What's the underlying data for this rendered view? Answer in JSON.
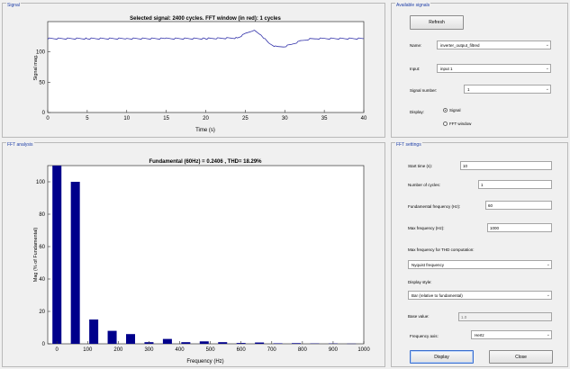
{
  "signal_panel": {
    "title": "Signal",
    "plot_title": "Selected signal: 2400 cycles. FFT window (in red): 1 cycles",
    "xlabel": "Time (s)",
    "ylabel": "Signal mag."
  },
  "fft_panel": {
    "title": "FFT analysis",
    "plot_title": "Fundamental (60Hz) = 0.2406 , THD= 18.29%",
    "xlabel": "Frequency (Hz)",
    "ylabel": "Mag (% of Fundamental)"
  },
  "available_signals": {
    "title": "Available signals",
    "refresh_label": "Refresh",
    "name_label": "Name:",
    "name_value": "inverter_output_filtred",
    "input_label": "Input:",
    "input_value": "input 1",
    "signal_number_label": "Signal number:",
    "signal_number_value": "1",
    "display_label": "Display:",
    "radio_signal": "Signal",
    "radio_fft_window": "FFT window",
    "selected_display": "Signal"
  },
  "fft_settings": {
    "title": "FFT settings",
    "start_time_label": "Start time (s):",
    "start_time_value": "10",
    "num_cycles_label": "Number of cycles:",
    "num_cycles_value": "1",
    "fund_freq_label": "Fundamental frequency (Hz):",
    "fund_freq_value": "60",
    "max_freq_label": "Max frequency (Hz):",
    "max_freq_value": "1000",
    "thd_label": "Max frequency for THD computation:",
    "thd_value": "Nyquist frequency",
    "display_style_label": "Display style:",
    "display_style_value": "Bar (relative to fundamental)",
    "base_value_label": "Base value:",
    "base_value_value": "1.0",
    "freq_axis_label": "Frequency axis:",
    "freq_axis_value": "Hertz",
    "display_button": "Display",
    "close_button": "Close"
  },
  "colors": {
    "signal_line": "#3333aa",
    "bar_fill": "#00008b",
    "panel_title": "#1f3fa8"
  },
  "chart_data": [
    {
      "type": "line",
      "title": "Selected signal: 2400 cycles. FFT window (in red): 1 cycles",
      "xlabel": "Time (s)",
      "ylabel": "Signal mag.",
      "xlim": [
        0,
        40
      ],
      "ylim": [
        0,
        150
      ],
      "xticks": [
        0,
        5,
        10,
        15,
        20,
        25,
        30,
        35,
        40
      ],
      "yticks": [
        0,
        50,
        100
      ],
      "x": [
        0,
        5,
        10,
        15,
        20,
        24,
        25,
        26,
        27,
        28,
        29,
        30,
        31,
        32,
        33,
        34,
        35,
        40
      ],
      "y": [
        122,
        122,
        122,
        122,
        122,
        123,
        130,
        136,
        128,
        114,
        108,
        109,
        113,
        118,
        121,
        122,
        122,
        122
      ]
    },
    {
      "type": "bar",
      "title": "Fundamental (60Hz) = 0.2406 , THD= 18.29%",
      "xlabel": "Frequency (Hz)",
      "ylabel": "Mag (% of Fundamental)",
      "xlim": [
        -30,
        1000
      ],
      "ylim": [
        0,
        110
      ],
      "xticks": [
        0,
        100,
        200,
        300,
        400,
        500,
        600,
        700,
        800,
        900,
        1000
      ],
      "yticks": [
        0,
        20,
        40,
        60,
        80,
        100
      ],
      "x": [
        0,
        60,
        120,
        180,
        240,
        300,
        360,
        420,
        480,
        540,
        600,
        660,
        720,
        780,
        840,
        900,
        960
      ],
      "values": [
        110,
        100,
        15,
        8,
        6,
        1,
        3,
        1,
        1.5,
        1,
        0.5,
        0.8,
        0.3,
        0.4,
        0.2,
        0.2,
        0.1
      ]
    }
  ]
}
